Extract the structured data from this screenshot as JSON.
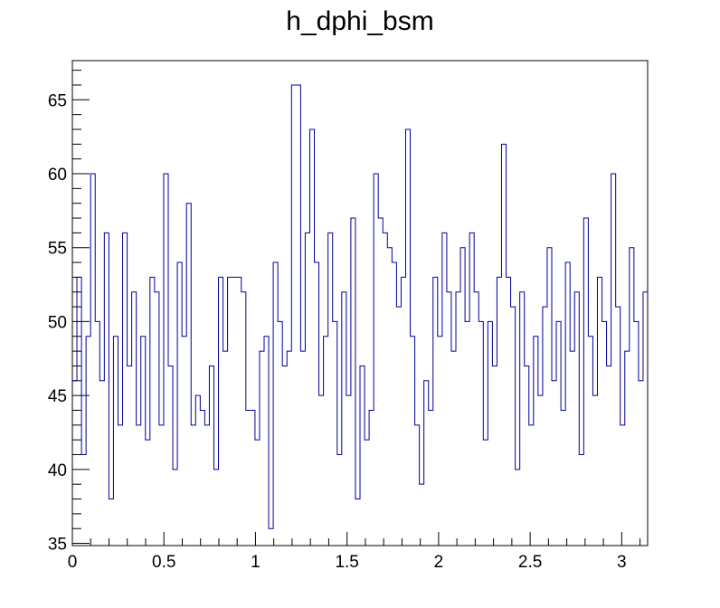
{
  "chart_data": {
    "type": "histogram",
    "title": "h_dphi_bsm",
    "xlabel": "",
    "ylabel": "",
    "xlim": [
      0,
      3.1416
    ],
    "ylim": [
      34.85,
      67.65
    ],
    "x_ticks": [
      "0",
      "0.5",
      "1",
      "1.5",
      "2",
      "2.5",
      "3"
    ],
    "y_ticks": [
      "35",
      "40",
      "45",
      "50",
      "55",
      "60",
      "65"
    ],
    "grid": false,
    "line_color": "#000099",
    "n_bins": 126,
    "bin_edges_range": [
      0,
      3.1416
    ],
    "values": [
      46,
      53,
      41,
      49,
      60,
      50,
      46,
      56,
      38,
      49,
      43,
      56,
      47,
      52,
      43,
      49,
      42,
      53,
      52,
      43,
      60,
      47,
      40,
      54,
      49,
      58,
      43,
      45,
      44,
      43,
      47,
      40,
      53,
      48,
      53,
      53,
      53,
      52,
      44,
      44,
      42,
      48,
      49,
      36,
      54,
      50,
      47,
      48,
      66,
      66,
      48,
      56,
      63,
      54,
      45,
      49,
      56,
      50,
      41,
      52,
      45,
      57,
      38,
      47,
      42,
      44,
      60,
      57,
      56,
      55,
      54,
      51,
      53,
      63,
      49,
      43,
      39,
      46,
      44,
      53,
      49,
      56,
      52,
      48,
      52,
      55,
      50,
      56,
      52,
      50,
      42,
      50,
      47,
      53,
      62,
      53,
      51,
      40,
      52,
      47,
      43,
      49,
      45,
      51,
      55,
      46,
      50,
      44,
      54,
      48,
      52,
      41,
      57,
      49,
      45,
      53,
      50,
      47,
      60,
      51,
      43,
      48,
      55,
      50,
      46,
      52
    ]
  }
}
